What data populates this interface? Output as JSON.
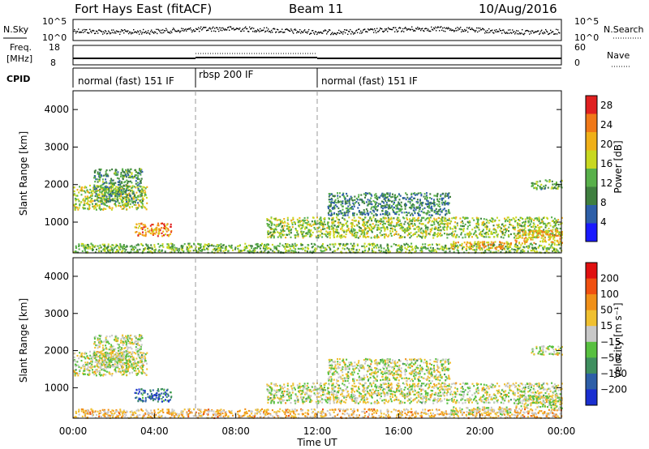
{
  "header": {
    "station": "Fort Hays East (fitACF)",
    "beam": "Beam 11",
    "date": "10/Aug/2016"
  },
  "top_panels": {
    "nsky_label": "N.Sky",
    "nsky_ticks": [
      "10^5",
      "10^0"
    ],
    "nsearch_label": "N.Search",
    "nsearch_ticks": [
      "10^5",
      "10^0"
    ],
    "freq_label_1": "Freq.",
    "freq_label_2": "[MHz]",
    "freq_ticks": [
      "18",
      "8"
    ],
    "nave_label": "Nave",
    "nave_ticks": [
      "60",
      "0"
    ],
    "cpid_label": "CPID",
    "cpid_segments": [
      {
        "label": "normal (fast) 151 IF",
        "start_hour": 0,
        "end_hour": 6
      },
      {
        "label": "rbsp 200 IF",
        "start_hour": 6,
        "end_hour": 12
      },
      {
        "label": "normal (fast) 151 IF",
        "start_hour": 12,
        "end_hour": 24
      }
    ]
  },
  "chart_data": [
    {
      "type": "heatmap",
      "name": "power",
      "ylabel": "Slant Range [km]",
      "xlabel": "Time UT",
      "ylim": [
        180,
        4500
      ],
      "xlim": [
        0,
        24
      ],
      "yticks": [
        "1000",
        "2000",
        "3000",
        "4000"
      ],
      "colorbar_label": "Power [dB]",
      "colorbar_ticks": [
        "4",
        "8",
        "12",
        "16",
        "20",
        "24",
        "28"
      ],
      "colorbar_range": [
        0,
        30
      ],
      "colors": [
        "#1a1aff",
        "#2e5fa8",
        "#3f7f3f",
        "#58b04a",
        "#c8d820",
        "#f0b018",
        "#f07818",
        "#e02020"
      ],
      "echo_regions": [
        {
          "t0": 0.0,
          "t1": 3.6,
          "r0": 1350,
          "r1": 2000,
          "level": 0.55
        },
        {
          "t0": 1.0,
          "t1": 3.4,
          "r0": 1500,
          "r1": 2450,
          "level": 0.35
        },
        {
          "t0": 3.0,
          "t1": 4.8,
          "r0": 650,
          "r1": 1000,
          "level": 0.75
        },
        {
          "t0": 0.0,
          "t1": 24.0,
          "r0": 200,
          "r1": 450,
          "level": 0.45
        },
        {
          "t0": 9.5,
          "t1": 24.0,
          "r0": 600,
          "r1": 1150,
          "level": 0.5
        },
        {
          "t0": 12.5,
          "t1": 18.5,
          "r0": 1200,
          "r1": 1800,
          "level": 0.3
        },
        {
          "t0": 18.5,
          "t1": 21.5,
          "r0": 300,
          "r1": 500,
          "level": 0.7
        },
        {
          "t0": 21.7,
          "t1": 24.0,
          "r0": 450,
          "r1": 800,
          "level": 0.7
        },
        {
          "t0": 22.5,
          "t1": 24.0,
          "r0": 1900,
          "r1": 2150,
          "level": 0.4
        }
      ]
    },
    {
      "type": "heatmap",
      "name": "velocity",
      "ylabel": "Slant Range [km]",
      "xlabel": "Time UT",
      "ylim": [
        180,
        4500
      ],
      "xlim": [
        0,
        24
      ],
      "yticks": [
        "1000",
        "2000",
        "3000",
        "4000"
      ],
      "xticks": [
        "00:00",
        "04:00",
        "08:00",
        "12:00",
        "16:00",
        "20:00",
        "00:00"
      ],
      "colorbar_label": "Velocity [m s⁻¹]",
      "colorbar_ticks": [
        "200",
        "100",
        "50",
        "15",
        "−15",
        "−50",
        "−100",
        "−200"
      ],
      "colorbar_range": [
        -250,
        250
      ],
      "colors": [
        "#1a2fd0",
        "#2e5fa8",
        "#3f8f5f",
        "#58c040",
        "#c8c8c8",
        "#f0c030",
        "#f09018",
        "#f05010",
        "#e01010"
      ],
      "echo_regions": [
        {
          "t0": 0.0,
          "t1": 3.6,
          "r0": 1350,
          "r1": 2000,
          "level": 0.5
        },
        {
          "t0": 1.0,
          "t1": 3.4,
          "r0": 1500,
          "r1": 2450,
          "level": 0.5
        },
        {
          "t0": 3.0,
          "t1": 4.8,
          "r0": 650,
          "r1": 1000,
          "level": 0.18
        },
        {
          "t0": 0.0,
          "t1": 24.0,
          "r0": 200,
          "r1": 450,
          "level": 0.62
        },
        {
          "t0": 9.5,
          "t1": 24.0,
          "r0": 600,
          "r1": 1150,
          "level": 0.5
        },
        {
          "t0": 12.5,
          "t1": 18.5,
          "r0": 1200,
          "r1": 1800,
          "level": 0.5
        },
        {
          "t0": 18.5,
          "t1": 21.5,
          "r0": 300,
          "r1": 500,
          "level": 0.5
        },
        {
          "t0": 21.7,
          "t1": 24.0,
          "r0": 450,
          "r1": 800,
          "level": 0.5
        },
        {
          "t0": 22.5,
          "t1": 24.0,
          "r0": 1900,
          "r1": 2150,
          "level": 0.5
        }
      ]
    }
  ]
}
